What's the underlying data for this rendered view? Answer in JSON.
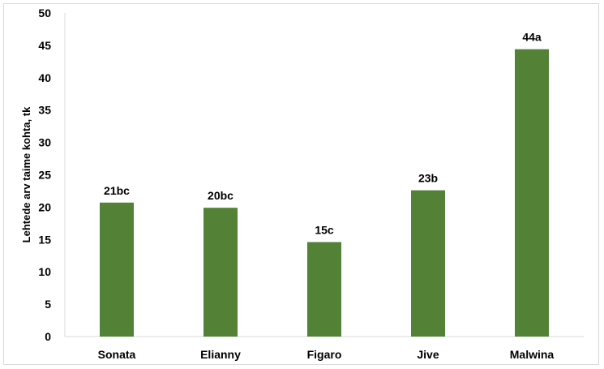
{
  "chart_data": {
    "type": "bar",
    "title": "",
    "xlabel": "",
    "ylabel": "Lehtede arv taime kohta, tk",
    "ylim": [
      0,
      50
    ],
    "yticks": [
      0,
      5,
      10,
      15,
      20,
      25,
      30,
      35,
      40,
      45,
      50
    ],
    "grid": false,
    "legend": "none",
    "bar_color": "#538135",
    "categories": [
      "Sonata",
      "Elianny",
      "Figaro",
      "Jive",
      "Malwina"
    ],
    "values": [
      20.7,
      19.9,
      14.6,
      22.6,
      44.4
    ],
    "data_labels": [
      "21bc",
      "20bc",
      "15c",
      "23b",
      "44a"
    ]
  }
}
